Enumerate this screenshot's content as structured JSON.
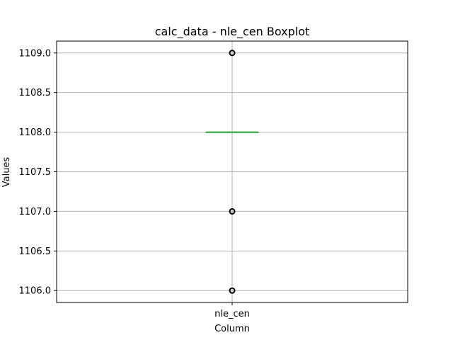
{
  "chart_data": {
    "type": "boxplot",
    "title": "calc_data - nle_cen Boxplot",
    "xlabel": "Column",
    "ylabel": "Values",
    "categories": [
      "nle_cen"
    ],
    "ylim": [
      1105.85,
      1109.15
    ],
    "yticks": [
      1106.0,
      1106.5,
      1107.0,
      1107.5,
      1108.0,
      1108.5,
      1109.0
    ],
    "ytick_labels": [
      "1106.0",
      "1106.5",
      "1107.0",
      "1107.5",
      "1108.0",
      "1108.5",
      "1109.0"
    ],
    "grid": true,
    "box": {
      "q1": 1108.0,
      "median": 1108.0,
      "q3": 1108.0,
      "whisker_low": 1108.0,
      "whisker_high": 1108.0
    },
    "outliers": [
      1109.0,
      1107.0,
      1106.0
    ],
    "colors": {
      "median": "#2ca02c",
      "box": "#1f77b4",
      "grid": "#b0b0b0",
      "outlier": "#000000"
    }
  }
}
